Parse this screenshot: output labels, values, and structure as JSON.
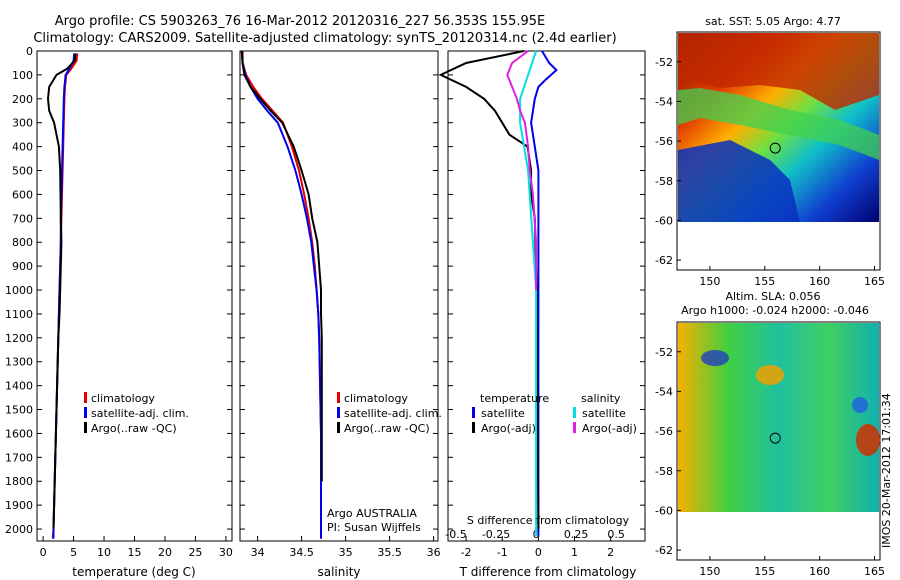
{
  "header": {
    "line1": "Argo profile: CS 5903263_76 16-Mar-2012 20120316_227 56.353S 155.95E",
    "line2": "Climatology: CARS2009. Satellite-adjusted climatology: synTS_20120314.nc (2.4d earlier)"
  },
  "chart_data": [
    {
      "type": "line",
      "xlabel": "temperature (deg C)",
      "ylim": [
        2050,
        0
      ],
      "xlim": [
        -1,
        31
      ],
      "xticks": [
        "0",
        "5",
        "10",
        "15",
        "20",
        "25",
        "30"
      ],
      "yticks": [
        "0",
        "100",
        "200",
        "300",
        "400",
        "500",
        "600",
        "700",
        "800",
        "900",
        "1000",
        "1100",
        "1200",
        "1300",
        "1400",
        "1500",
        "1600",
        "1700",
        "1800",
        "1900",
        "2000"
      ],
      "legend": [
        "climatology",
        "satellite-adj. clim.",
        "Argo(..raw -QC)"
      ],
      "colors": {
        "climatology": "#e00000",
        "satellite": "#0000ee",
        "argo": "#000000"
      },
      "series": [
        {
          "name": "climatology",
          "x": [
            5.6,
            5.5,
            4.6,
            3.8,
            3.6,
            3.5,
            3.4,
            3.3,
            3.2,
            3.1,
            3.0,
            2.9,
            2.8,
            2.7,
            2.5,
            2.4,
            2.2,
            2.1,
            1.9,
            1.8,
            1.7,
            1.6
          ],
          "y": [
            10,
            40,
            75,
            100,
            150,
            200,
            300,
            400,
            500,
            600,
            700,
            800,
            900,
            1000,
            1200,
            1300,
            1500,
            1600,
            1800,
            1900,
            2000,
            2040
          ]
        },
        {
          "name": "satellite-adj. clim.",
          "x": [
            5.1,
            5.0,
            4.3,
            3.7,
            3.5,
            3.4,
            3.3,
            3.2,
            3.1,
            3.0,
            2.9,
            2.9,
            2.8,
            2.7,
            2.5,
            2.4,
            2.2,
            2.1,
            1.9,
            1.8,
            1.7,
            1.7
          ],
          "y": [
            10,
            40,
            75,
            100,
            150,
            200,
            300,
            400,
            500,
            600,
            700,
            800,
            900,
            1000,
            1200,
            1300,
            1500,
            1600,
            1800,
            1900,
            2000,
            2040
          ]
        },
        {
          "name": "Argo(..raw -QC)",
          "x": [
            5.3,
            5.2,
            3.9,
            2.2,
            1.0,
            0.8,
            1.0,
            1.8,
            2.6,
            2.8,
            2.9,
            3.0,
            2.9,
            2.8,
            2.7,
            2.5,
            2.4,
            2.2,
            2.1,
            1.9,
            1.8,
            1.7
          ],
          "y": [
            10,
            40,
            75,
            100,
            150,
            200,
            250,
            300,
            400,
            500,
            700,
            800,
            900,
            1000,
            1100,
            1200,
            1300,
            1500,
            1600,
            1800,
            1900,
            2000
          ]
        }
      ]
    },
    {
      "type": "line",
      "xlabel": "salinity",
      "ylim": [
        2050,
        0
      ],
      "xlim": [
        33.8,
        36.05
      ],
      "xticks": [
        "34",
        "34.5",
        "35",
        "35.5",
        "36"
      ],
      "legend": [
        "climatology",
        "satellite-adj. clim.",
        "Argo(..raw -QC)"
      ],
      "annotation": [
        "Argo AUSTRALIA",
        "PI: Susan Wijffels"
      ],
      "series": [
        {
          "name": "climatology",
          "x": [
            33.83,
            33.83,
            33.87,
            33.95,
            34.05,
            34.17,
            34.29,
            34.39,
            34.47,
            34.53,
            34.58,
            34.62,
            34.65,
            34.67,
            34.69,
            34.7,
            34.71,
            34.72,
            34.72,
            34.72
          ],
          "y": [
            0,
            50,
            100,
            150,
            200,
            250,
            300,
            400,
            500,
            600,
            700,
            800,
            900,
            1000,
            1100,
            1200,
            1400,
            1600,
            1800,
            2040
          ]
        },
        {
          "name": "satellite-adj. clim.",
          "x": [
            33.82,
            33.83,
            33.86,
            33.92,
            34.0,
            34.11,
            34.23,
            34.34,
            34.43,
            34.5,
            34.56,
            34.61,
            34.64,
            34.67,
            34.69,
            34.7,
            34.71,
            34.72,
            34.72,
            34.72
          ],
          "y": [
            0,
            50,
            100,
            150,
            200,
            250,
            300,
            400,
            500,
            600,
            700,
            800,
            900,
            1000,
            1100,
            1200,
            1400,
            1600,
            1800,
            2040
          ]
        },
        {
          "name": "Argo(..raw -QC)",
          "x": [
            33.82,
            33.83,
            33.85,
            33.92,
            34.03,
            34.15,
            34.28,
            34.41,
            34.5,
            34.58,
            34.62,
            34.68,
            34.7,
            34.72,
            34.72,
            34.73,
            34.73,
            34.73,
            34.73
          ],
          "y": [
            0,
            50,
            100,
            150,
            200,
            250,
            300,
            400,
            500,
            600,
            700,
            800,
            900,
            1000,
            1100,
            1200,
            1400,
            1600,
            1800
          ]
        }
      ]
    },
    {
      "type": "line",
      "xlabel": "T difference from climatology",
      "xlabel_top": "S difference from climatology",
      "ylim": [
        2050,
        0
      ],
      "xlim": [
        -2.5,
        2.95
      ],
      "xticks": [
        "-2",
        "-1",
        "0",
        "1",
        "2"
      ],
      "xticks_top": [
        "-0.5",
        "-0.25",
        "0",
        "0.25",
        "0.5"
      ],
      "legend_left_title": "temperature",
      "legend_right_title": "salinity",
      "legend": [
        "satellite",
        "Argo(-adj)",
        "satellite",
        "Argo(-adj)"
      ],
      "series": [
        {
          "name": "temperature satellite",
          "x": [
            0.1,
            0.3,
            0.5,
            0.2,
            0.0,
            -0.1,
            -0.2,
            -0.1,
            0.0,
            0.0,
            0.0,
            0.0,
            0.0
          ],
          "y": [
            0,
            50,
            80,
            120,
            150,
            200,
            300,
            400,
            500,
            700,
            1000,
            1500,
            2030
          ]
        },
        {
          "name": "temperature Argo(-adj)",
          "x": [
            -0.4,
            -2.0,
            -2.7,
            -2.0,
            -1.5,
            -1.2,
            -1.0,
            -0.8,
            -0.3,
            -0.2,
            -0.2,
            -0.1,
            -0.05,
            0.0
          ],
          "y": [
            0,
            50,
            100,
            150,
            200,
            250,
            300,
            350,
            400,
            500,
            600,
            700,
            1000,
            2000
          ]
        },
        {
          "name": "salinity satellite",
          "x": [
            0.0,
            -0.05,
            -0.1,
            -0.1,
            -0.05,
            0.0,
            0.0,
            0.0
          ],
          "y": [
            0,
            100,
            200,
            300,
            500,
            1000,
            1500,
            2030
          ]
        },
        {
          "name": "salinity Argo(-adj)",
          "x": [
            -0.05,
            -0.15,
            -0.18,
            -0.15,
            -0.12,
            -0.1,
            -0.07,
            -0.05,
            -0.04,
            -0.02,
            0.0,
            0.0
          ],
          "y": [
            0,
            50,
            100,
            150,
            200,
            250,
            300,
            400,
            500,
            600,
            800,
            1000
          ]
        }
      ]
    },
    {
      "type": "heatmap",
      "title": "sat. SST: 5.05  Argo: 4.77",
      "xlim": [
        147,
        165.5
      ],
      "ylim": [
        -62.5,
        -50.5
      ],
      "xticks": [
        "150",
        "155",
        "160",
        "165"
      ],
      "yticks": [
        "-52",
        "-54",
        "-56",
        "-58",
        "-60",
        "-62"
      ],
      "marker": {
        "lon": 155.95,
        "lat": -56.353
      }
    },
    {
      "type": "heatmap",
      "title": "Altim. SLA: 0.056",
      "subtitle": "Argo h1000: -0.024 h2000: -0.046",
      "xlim": [
        147,
        165.5
      ],
      "ylim": [
        -62.5,
        -50.5
      ],
      "xticks": [
        "150",
        "155",
        "160",
        "165"
      ],
      "yticks": [
        "-52",
        "-54",
        "-56",
        "-58",
        "-60",
        "-62"
      ],
      "marker": {
        "lon": 155.95,
        "lat": -56.353
      }
    }
  ],
  "footer": {
    "stamp": "IMOS 20-Mar-2012 17:01:34"
  }
}
